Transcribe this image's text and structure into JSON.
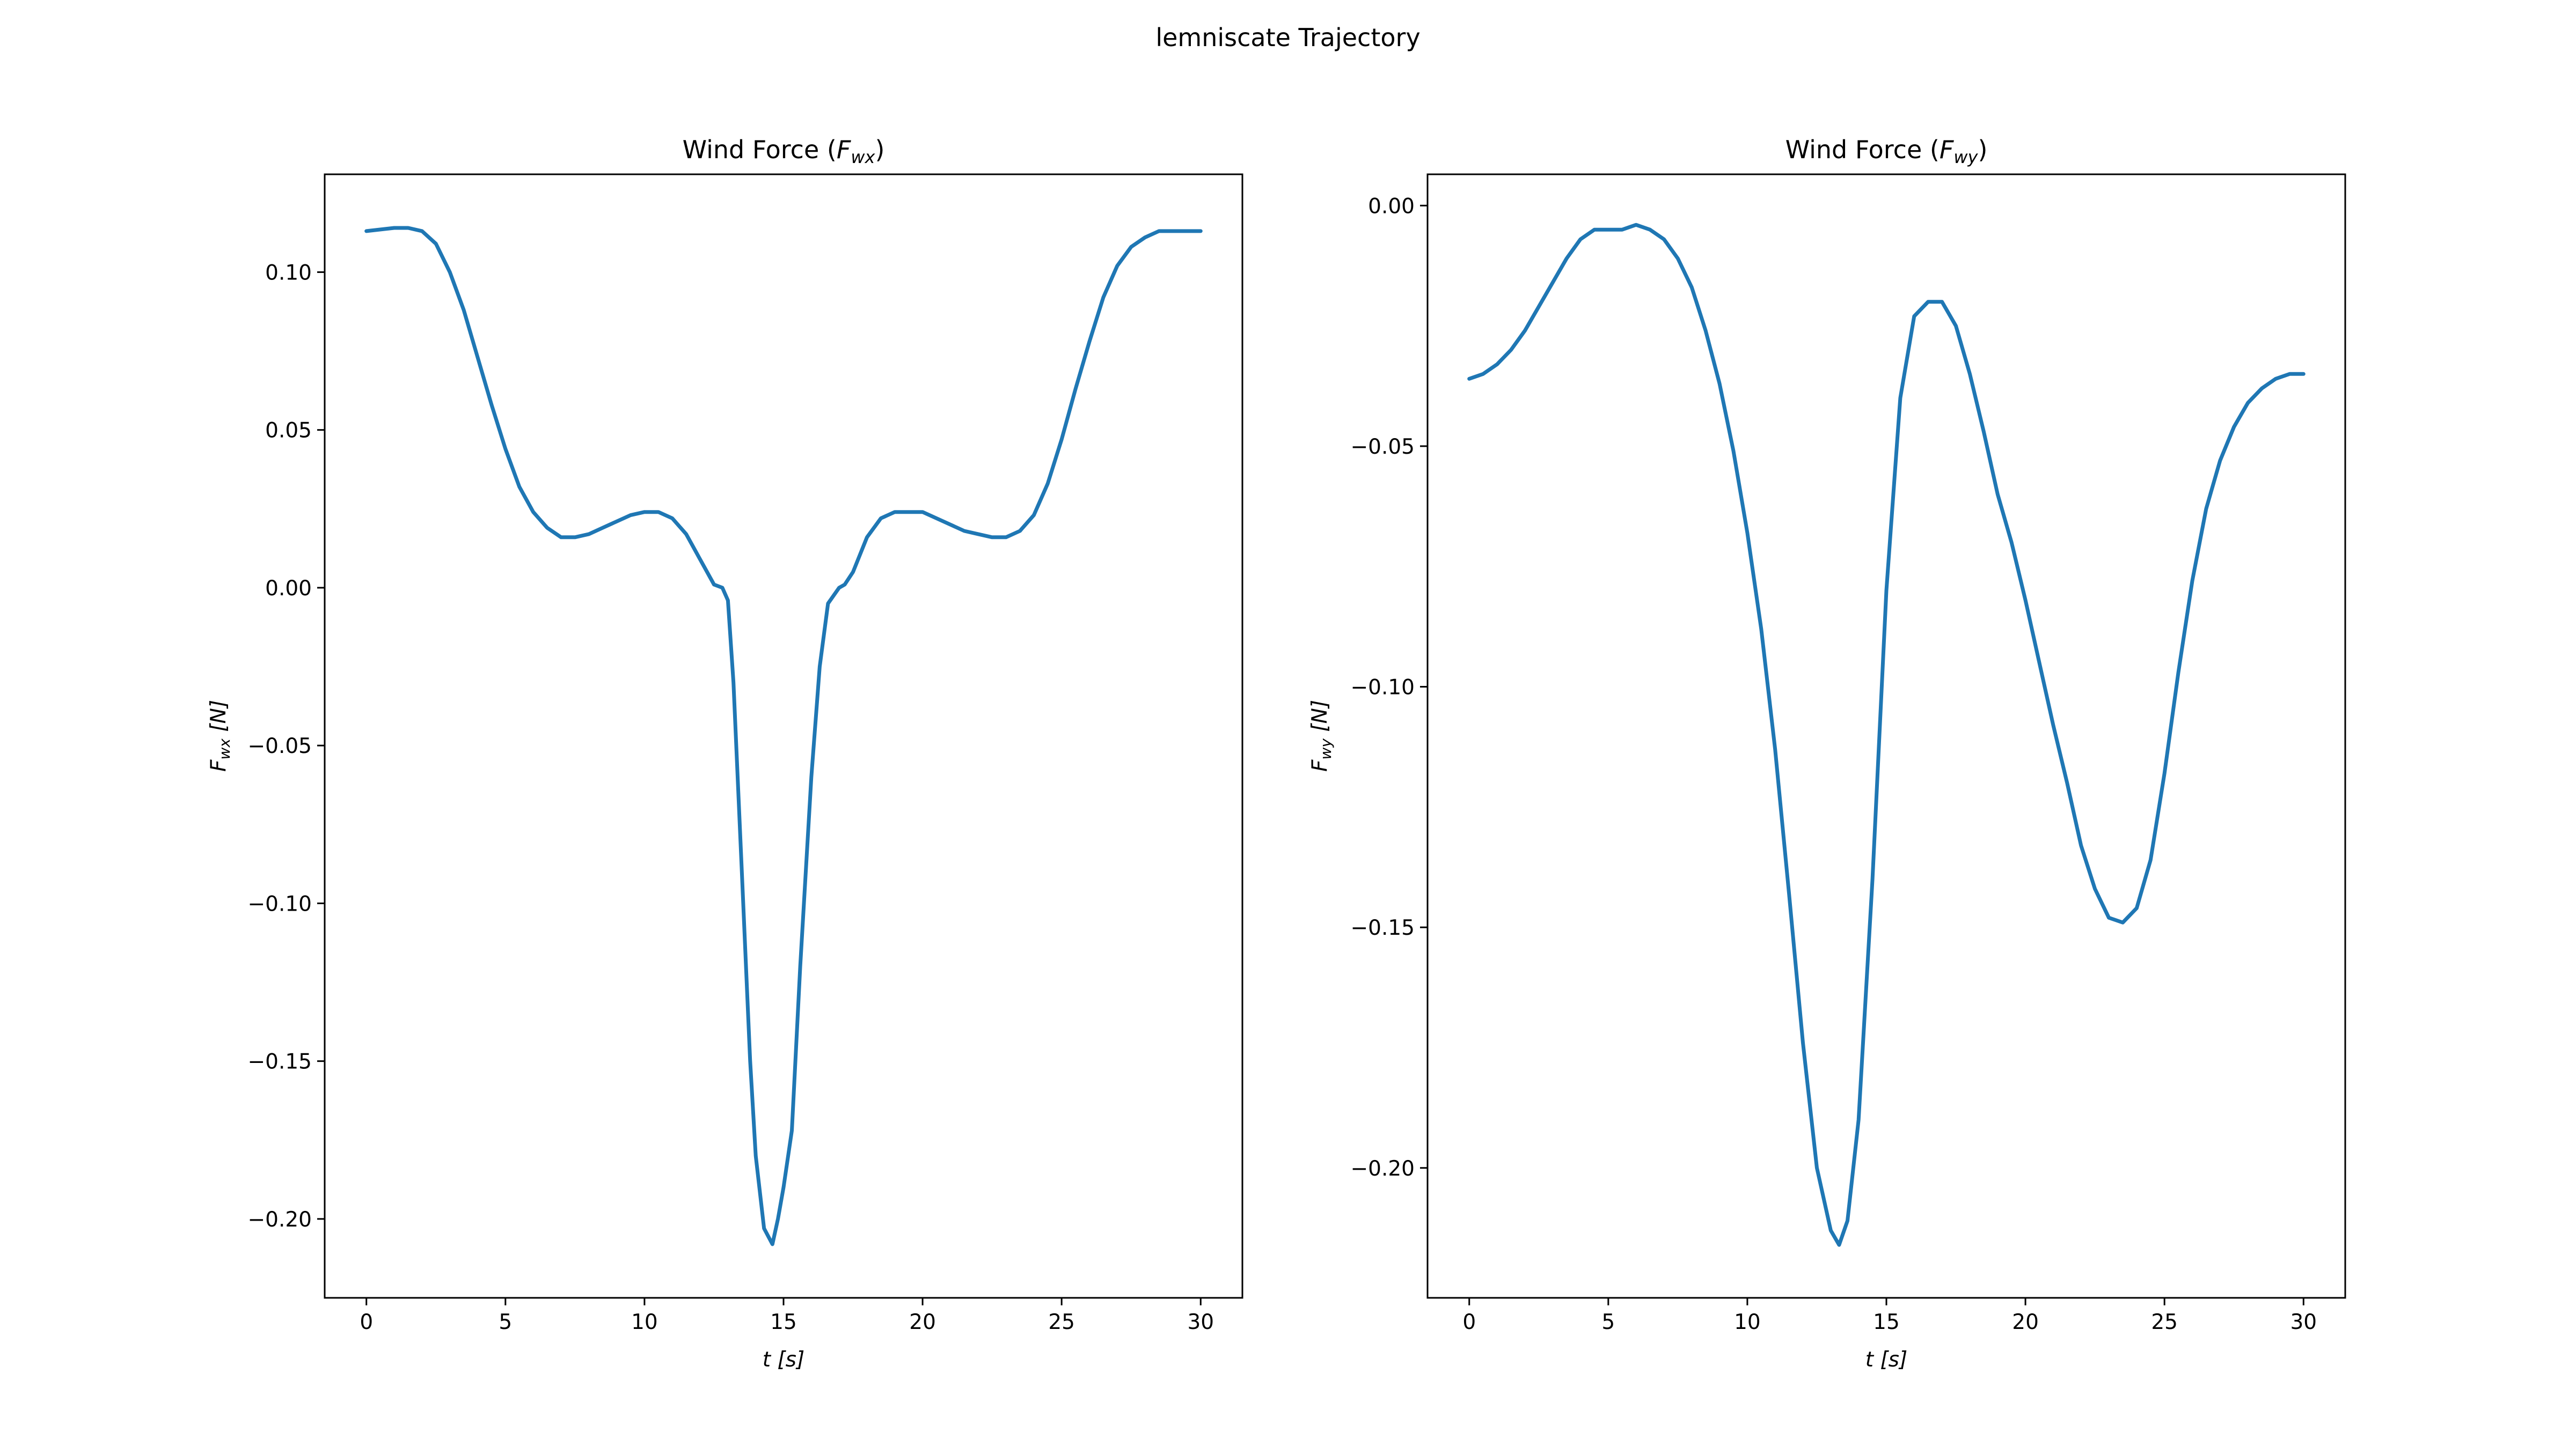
{
  "figure": {
    "suptitle": "lemniscate Trajectory",
    "series_color": "#1f77b4"
  },
  "chart_data": [
    {
      "type": "line",
      "title_prefix": "Wind Force (",
      "title_var": "F",
      "title_sub": "wx",
      "title_suffix": ")",
      "xlabel_var": "t",
      "xlabel_unit": "[s]",
      "ylabel_var": "F",
      "ylabel_sub": "wx",
      "ylabel_unit": "[N]",
      "xlim": [
        -1.5,
        31.5
      ],
      "ylim": [
        -0.225,
        0.131
      ],
      "xticks": [
        0,
        5,
        10,
        15,
        20,
        25,
        30
      ],
      "xtick_labels": [
        "0",
        "5",
        "10",
        "15",
        "20",
        "25",
        "30"
      ],
      "yticks": [
        0.1,
        0.05,
        0.0,
        -0.05,
        -0.1,
        -0.15,
        -0.2
      ],
      "ytick_labels": [
        "0.10",
        "0.05",
        "0.00",
        "−0.05",
        "−0.10",
        "−0.15",
        "−0.20"
      ],
      "grid": false,
      "series": [
        {
          "x": [
            0,
            1,
            1.5,
            2,
            2.5,
            3,
            3.5,
            4,
            4.5,
            5,
            5.5,
            6,
            6.5,
            7,
            7.5,
            8,
            8.5,
            9,
            9.5,
            10,
            10.5,
            11,
            11.5,
            12,
            12.5,
            12.8,
            13,
            13.2,
            13.5,
            13.8,
            14,
            14.3,
            14.6,
            14.8,
            15,
            15.3,
            15.6,
            16,
            16.3,
            16.6,
            17,
            17.2,
            17.5,
            18,
            18.5,
            19,
            19.5,
            20,
            20.5,
            21,
            21.5,
            22,
            22.5,
            23,
            23.5,
            24,
            24.5,
            25,
            25.5,
            26,
            26.5,
            27,
            27.5,
            28,
            28.5,
            29,
            29.5,
            30
          ],
          "y": [
            0.113,
            0.114,
            0.114,
            0.113,
            0.109,
            0.1,
            0.088,
            0.073,
            0.058,
            0.044,
            0.032,
            0.024,
            0.019,
            0.016,
            0.016,
            0.017,
            0.019,
            0.021,
            0.023,
            0.024,
            0.024,
            0.022,
            0.017,
            0.009,
            0.001,
            0.0,
            -0.004,
            -0.03,
            -0.09,
            -0.15,
            -0.18,
            -0.203,
            -0.208,
            -0.2,
            -0.19,
            -0.172,
            -0.12,
            -0.06,
            -0.025,
            -0.005,
            0.0,
            0.001,
            0.005,
            0.016,
            0.022,
            0.024,
            0.024,
            0.024,
            0.022,
            0.02,
            0.018,
            0.017,
            0.016,
            0.016,
            0.018,
            0.023,
            0.033,
            0.047,
            0.063,
            0.078,
            0.092,
            0.102,
            0.108,
            0.111,
            0.113,
            0.113,
            0.113,
            0.113
          ]
        }
      ]
    },
    {
      "type": "line",
      "title_prefix": "Wind Force (",
      "title_var": "F",
      "title_sub": "wy",
      "title_suffix": ")",
      "xlabel_var": "t",
      "xlabel_unit": "[s]",
      "ylabel_var": "F",
      "ylabel_sub": "wy",
      "ylabel_unit": "[N]",
      "xlim": [
        -1.5,
        31.5
      ],
      "ylim": [
        -0.227,
        0.0065
      ],
      "xticks": [
        0,
        5,
        10,
        15,
        20,
        25,
        30
      ],
      "xtick_labels": [
        "0",
        "5",
        "10",
        "15",
        "20",
        "25",
        "30"
      ],
      "yticks": [
        0.0,
        -0.05,
        -0.1,
        -0.15,
        -0.2
      ],
      "ytick_labels": [
        "0.00",
        "−0.05",
        "−0.10",
        "−0.15",
        "−0.20"
      ],
      "grid": false,
      "series": [
        {
          "x": [
            0,
            0.5,
            1,
            1.5,
            2,
            2.5,
            3,
            3.5,
            4,
            4.5,
            5,
            5.5,
            6,
            6.5,
            7,
            7.5,
            8,
            8.5,
            9,
            9.5,
            10,
            10.5,
            11,
            11.5,
            12,
            12.5,
            13,
            13.3,
            13.6,
            14,
            14.5,
            15,
            15.5,
            16,
            16.5,
            17,
            17.5,
            18,
            18.5,
            19,
            19.5,
            20,
            20.5,
            21,
            21.5,
            22,
            22.5,
            23,
            23.5,
            24,
            24.5,
            25,
            25.5,
            26,
            26.5,
            27,
            27.5,
            28,
            28.5,
            29,
            29.5,
            30
          ],
          "y": [
            -0.036,
            -0.035,
            -0.033,
            -0.03,
            -0.026,
            -0.021,
            -0.016,
            -0.011,
            -0.007,
            -0.005,
            -0.005,
            -0.005,
            -0.004,
            -0.005,
            -0.007,
            -0.011,
            -0.017,
            -0.026,
            -0.037,
            -0.051,
            -0.068,
            -0.088,
            -0.113,
            -0.143,
            -0.174,
            -0.2,
            -0.213,
            -0.216,
            -0.211,
            -0.19,
            -0.14,
            -0.08,
            -0.04,
            -0.023,
            -0.02,
            -0.02,
            -0.025,
            -0.035,
            -0.047,
            -0.06,
            -0.07,
            -0.082,
            -0.095,
            -0.108,
            -0.12,
            -0.133,
            -0.142,
            -0.148,
            -0.149,
            -0.146,
            -0.136,
            -0.118,
            -0.097,
            -0.078,
            -0.063,
            -0.053,
            -0.046,
            -0.041,
            -0.038,
            -0.036,
            -0.035,
            -0.035
          ]
        }
      ]
    }
  ]
}
